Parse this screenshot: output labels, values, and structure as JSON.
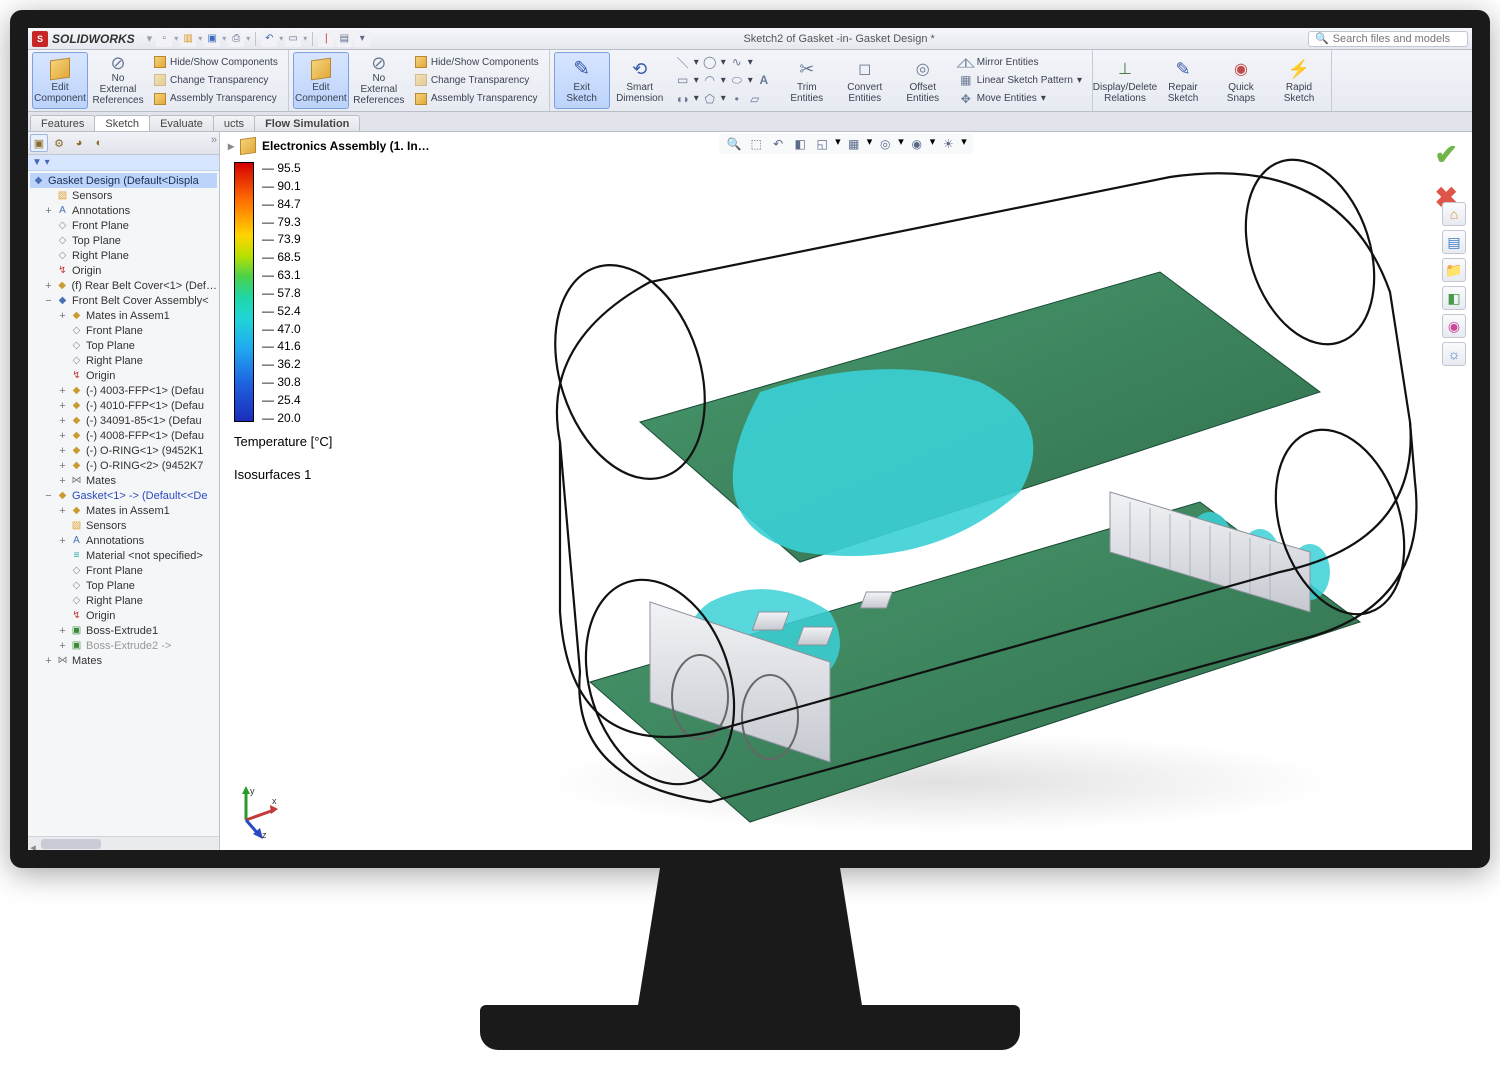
{
  "app": {
    "brand": "SOLIDWORKS",
    "title": "Sketch2 of Gasket -in- Gasket Design *",
    "search_placeholder": "Search files and models"
  },
  "quick_access": [
    "New",
    "Open",
    "Save",
    "SaveAll",
    "Undo",
    "Redo",
    "Rebuild",
    "Options",
    "Dropdown",
    "Dropdown"
  ],
  "ribbon": {
    "g1": {
      "edit_component": "Edit Component",
      "no_external": "No External References",
      "hide_show": "Hide/Show Components",
      "change_transparency": "Change Transparency",
      "assembly_transparency": "Assembly Transparency"
    },
    "sketch": {
      "exit_sketch": "Exit Sketch",
      "smart_dimension": "Smart Dimension",
      "trim": "Trim Entities",
      "convert": "Convert Entities",
      "offset": "Offset Entities",
      "mirror": "Mirror Entities",
      "linear_pattern": "Linear Sketch Pattern",
      "move": "Move Entities",
      "display_delete": "Display/Delete Relations",
      "repair": "Repair Sketch",
      "quick_snaps": "Quick Snaps",
      "rapid": "Rapid Sketch"
    }
  },
  "tabs": {
    "features": "Features",
    "sketch": "Sketch",
    "evaluate": "Evaluate",
    "products": "ucts",
    "flow": "Flow Simulation"
  },
  "side_tabs": [
    "feature-tree",
    "config",
    "display",
    "property",
    "appearance"
  ],
  "tree": {
    "root": "Gasket Design  (Default<Displa",
    "items": [
      {
        "l": 1,
        "i": "ic-folder",
        "t": "Sensors"
      },
      {
        "l": 1,
        "i": "ic-ann",
        "t": "Annotations",
        "tw": "+"
      },
      {
        "l": 1,
        "i": "ic-plane",
        "t": "Front Plane"
      },
      {
        "l": 1,
        "i": "ic-plane",
        "t": "Top Plane"
      },
      {
        "l": 1,
        "i": "ic-plane",
        "t": "Right Plane"
      },
      {
        "l": 1,
        "i": "ic-origin",
        "t": "Origin"
      },
      {
        "l": 1,
        "i": "ic-part",
        "t": "(f) Rear Belt Cover<1> (Def…",
        "tw": "+"
      },
      {
        "l": 1,
        "i": "ic-asm",
        "t": "Front Belt Cover Assembly<",
        "tw": "−"
      },
      {
        "l": 2,
        "i": "ic-part",
        "t": "Mates in Assem1",
        "tw": "+"
      },
      {
        "l": 2,
        "i": "ic-plane",
        "t": "Front Plane"
      },
      {
        "l": 2,
        "i": "ic-plane",
        "t": "Top Plane"
      },
      {
        "l": 2,
        "i": "ic-plane",
        "t": "Right Plane"
      },
      {
        "l": 2,
        "i": "ic-origin",
        "t": "Origin"
      },
      {
        "l": 2,
        "i": "ic-part",
        "t": "(-) 4003-FFP<1> (Defau",
        "tw": "+"
      },
      {
        "l": 2,
        "i": "ic-part",
        "t": "(-) 4010-FFP<1> (Defau",
        "tw": "+"
      },
      {
        "l": 2,
        "i": "ic-part",
        "t": "(-) 34091-85<1> (Defau",
        "tw": "+"
      },
      {
        "l": 2,
        "i": "ic-part",
        "t": "(-) 4008-FFP<1> (Defau",
        "tw": "+"
      },
      {
        "l": 2,
        "i": "ic-part",
        "t": "(-) O-RING<1> (9452K1",
        "tw": "+"
      },
      {
        "l": 2,
        "i": "ic-part",
        "t": "(-) O-RING<2> (9452K7",
        "tw": "+"
      },
      {
        "l": 2,
        "i": "ic-mate",
        "t": "Mates",
        "tw": "+"
      },
      {
        "l": 1,
        "i": "ic-part",
        "t": "Gasket<1> -> (Default<<De",
        "tw": "−",
        "blue": true
      },
      {
        "l": 2,
        "i": "ic-part",
        "t": "Mates in Assem1",
        "tw": "+"
      },
      {
        "l": 2,
        "i": "ic-folder",
        "t": "Sensors"
      },
      {
        "l": 2,
        "i": "ic-ann",
        "t": "Annotations",
        "tw": "+"
      },
      {
        "l": 2,
        "i": "ic-mat",
        "t": "Material <not specified>"
      },
      {
        "l": 2,
        "i": "ic-plane",
        "t": "Front Plane"
      },
      {
        "l": 2,
        "i": "ic-plane",
        "t": "Top Plane"
      },
      {
        "l": 2,
        "i": "ic-plane",
        "t": "Right Plane"
      },
      {
        "l": 2,
        "i": "ic-origin",
        "t": "Origin"
      },
      {
        "l": 2,
        "i": "ic-feat",
        "t": "Boss-Extrude1",
        "tw": "+"
      },
      {
        "l": 2,
        "i": "ic-feat",
        "t": "Boss-Extrude2 ->",
        "tw": "+",
        "dim": true
      },
      {
        "l": 1,
        "i": "ic-mate",
        "t": "Mates",
        "tw": "+"
      }
    ]
  },
  "viewport": {
    "title": "Electronics Assembly  (1. In…",
    "legend": {
      "values": [
        "95.5",
        "90.1",
        "84.7",
        "79.3",
        "73.9",
        "68.5",
        "63.1",
        "57.8",
        "52.4",
        "47.0",
        "41.6",
        "36.2",
        "30.8",
        "25.4",
        "20.0"
      ],
      "unit": "Temperature [°C]",
      "sub": "Isosurfaces 1"
    },
    "colors": {
      "pcb": "#3a8a5f",
      "pcb_dark": "#2f6e4c",
      "iso": "#3bd0d6",
      "metal": "#e6e7ea",
      "metal_shadow": "#bfc2c9",
      "outline": "#111"
    },
    "triad": {
      "x": "x",
      "y": "y",
      "z": "z"
    }
  },
  "right_tools": [
    {
      "name": "view-orientation",
      "color": "#d59b2a",
      "g": "⌂"
    },
    {
      "name": "display-style",
      "color": "#3a7ac9",
      "g": "▤"
    },
    {
      "name": "open-folder",
      "color": "#d59b2a",
      "g": "📁"
    },
    {
      "name": "section-view",
      "color": "#4a9a4a",
      "g": "◧"
    },
    {
      "name": "appearances",
      "color": "#c94a9a",
      "g": "◉"
    },
    {
      "name": "scene",
      "color": "#3a7ac9",
      "g": "☼"
    }
  ],
  "win_ctrls": [
    "⮟",
    "◫",
    "—",
    "◻",
    "✕"
  ]
}
